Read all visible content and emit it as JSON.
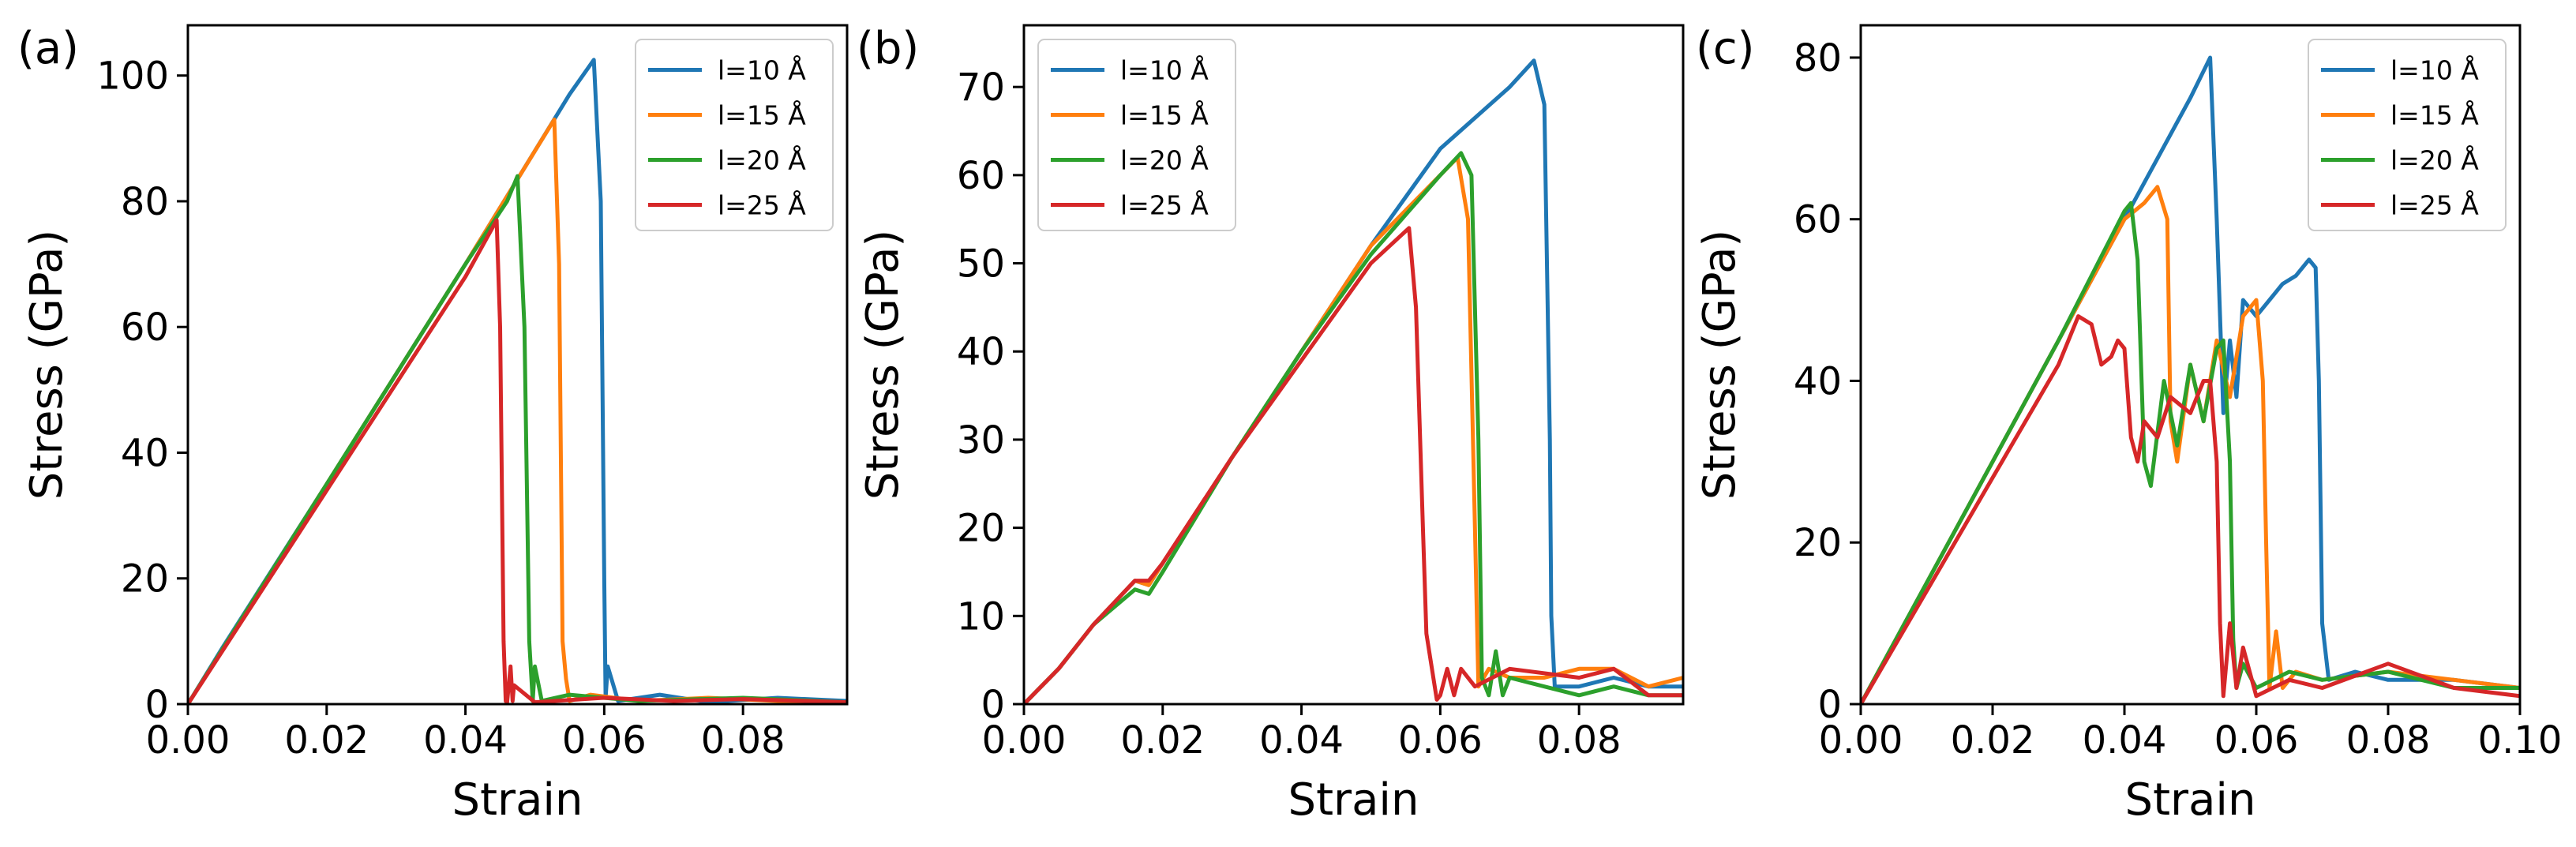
{
  "colors": {
    "s10": "#1f77b4",
    "s15": "#ff7f0e",
    "s20": "#2ca02c",
    "s25": "#d62728"
  },
  "chart_data": [
    {
      "type": "line",
      "panel_label": "(a)",
      "xlabel": "Strain",
      "ylabel": "Stress (GPa)",
      "xlim": [
        0,
        0.095
      ],
      "ylim": [
        0,
        108
      ],
      "xticks": [
        0,
        0.02,
        0.04,
        0.06,
        0.08
      ],
      "xtick_labels": [
        "0.00",
        "0.02",
        "0.04",
        "0.06",
        "0.08"
      ],
      "yticks": [
        0,
        20,
        40,
        60,
        80,
        100
      ],
      "ytick_labels": [
        "0",
        "20",
        "40",
        "60",
        "80",
        "100"
      ],
      "legend": "top-right",
      "series": [
        {
          "name": "l=10 Å",
          "color": "#1f77b4",
          "x": [
            0,
            0.005,
            0.02,
            0.04,
            0.055,
            0.0585,
            0.0595,
            0.06,
            0.0602,
            0.0605,
            0.062,
            0.068,
            0.075,
            0.085,
            0.095
          ],
          "y": [
            0,
            9,
            35,
            70,
            97,
            102.5,
            80,
            20,
            1,
            6,
            0.5,
            1.5,
            0.3,
            1,
            0.5
          ]
        },
        {
          "name": "l=15 Å",
          "color": "#ff7f0e",
          "x": [
            0,
            0.02,
            0.04,
            0.05,
            0.0528,
            0.0535,
            0.054,
            0.0545,
            0.055,
            0.058,
            0.065,
            0.075,
            0.085,
            0.095
          ],
          "y": [
            0,
            35,
            70,
            88,
            93,
            70,
            10,
            4,
            0.5,
            1.5,
            0.5,
            1,
            0.5,
            0.3
          ]
        },
        {
          "name": "l=20 Å",
          "color": "#2ca02c",
          "x": [
            0,
            0.02,
            0.04,
            0.046,
            0.0475,
            0.0485,
            0.0492,
            0.0497,
            0.05,
            0.051,
            0.055,
            0.065,
            0.08,
            0.095
          ],
          "y": [
            0,
            35,
            70,
            80,
            84,
            60,
            10,
            0.5,
            6,
            0.5,
            1.5,
            0.5,
            1,
            0.3
          ]
        },
        {
          "name": "l=25 Å",
          "color": "#d62728",
          "x": [
            0,
            0.02,
            0.04,
            0.0445,
            0.045,
            0.0455,
            0.0458,
            0.046,
            0.0465,
            0.0468,
            0.047,
            0.05,
            0.06,
            0.07,
            0.08,
            0.095
          ],
          "y": [
            0,
            34,
            68,
            77,
            60,
            10,
            0.5,
            0.2,
            6,
            0.5,
            3,
            0.3,
            1,
            0.5,
            0.8,
            0.3
          ]
        }
      ]
    },
    {
      "type": "line",
      "panel_label": "(b)",
      "xlabel": "Strain",
      "ylabel": "Stress (GPa)",
      "xlim": [
        0,
        0.095
      ],
      "ylim": [
        0,
        77
      ],
      "xticks": [
        0,
        0.02,
        0.04,
        0.06,
        0.08
      ],
      "xtick_labels": [
        "0.00",
        "0.02",
        "0.04",
        "0.06",
        "0.08"
      ],
      "yticks": [
        0,
        10,
        20,
        30,
        40,
        50,
        60,
        70
      ],
      "ytick_labels": [
        "0",
        "10",
        "20",
        "30",
        "40",
        "50",
        "60",
        "70"
      ],
      "legend": "top-left",
      "series": [
        {
          "name": "l=10 Å",
          "color": "#1f77b4",
          "x": [
            0,
            0.005,
            0.01,
            0.016,
            0.018,
            0.02,
            0.03,
            0.04,
            0.05,
            0.06,
            0.07,
            0.0735,
            0.075,
            0.0758,
            0.076,
            0.0765,
            0.08,
            0.085,
            0.09,
            0.095
          ],
          "y": [
            0,
            4,
            9,
            14,
            13.5,
            16,
            28,
            40,
            52,
            63,
            70,
            73,
            68,
            30,
            10,
            2,
            2,
            3,
            2,
            2
          ]
        },
        {
          "name": "l=15 Å",
          "color": "#ff7f0e",
          "x": [
            0,
            0.005,
            0.01,
            0.016,
            0.018,
            0.02,
            0.03,
            0.04,
            0.05,
            0.06,
            0.0625,
            0.064,
            0.065,
            0.0655,
            0.067,
            0.07,
            0.075,
            0.08,
            0.085,
            0.09,
            0.095
          ],
          "y": [
            0,
            4,
            9,
            14,
            13.5,
            16,
            28,
            40,
            52,
            60,
            62,
            55,
            20,
            2,
            4,
            3,
            3,
            4,
            4,
            2,
            3
          ]
        },
        {
          "name": "l=20 Å",
          "color": "#2ca02c",
          "x": [
            0,
            0.005,
            0.01,
            0.016,
            0.018,
            0.02,
            0.03,
            0.04,
            0.05,
            0.06,
            0.063,
            0.0645,
            0.0655,
            0.066,
            0.067,
            0.068,
            0.069,
            0.07,
            0.075,
            0.08,
            0.085,
            0.09,
            0.095
          ],
          "y": [
            0,
            4,
            9,
            13,
            12.5,
            15,
            28,
            40,
            51,
            60,
            62.5,
            60,
            30,
            3,
            1,
            6,
            1,
            3,
            2,
            1,
            2,
            1,
            1
          ]
        },
        {
          "name": "l=25 Å",
          "color": "#d62728",
          "x": [
            0,
            0.005,
            0.01,
            0.016,
            0.018,
            0.02,
            0.03,
            0.04,
            0.05,
            0.0555,
            0.0565,
            0.0575,
            0.058,
            0.0595,
            0.06,
            0.061,
            0.062,
            0.063,
            0.065,
            0.07,
            0.08,
            0.085,
            0.09,
            0.095
          ],
          "y": [
            0,
            4,
            9,
            14,
            14,
            16,
            28,
            39,
            50,
            54,
            45,
            20,
            8,
            0.5,
            1,
            4,
            1,
            4,
            2,
            4,
            3,
            4,
            1,
            1
          ]
        }
      ]
    },
    {
      "type": "line",
      "panel_label": "(c)",
      "xlabel": "Strain",
      "ylabel": "Stress (GPa)",
      "xlim": [
        0,
        0.1
      ],
      "ylim": [
        0,
        84
      ],
      "xticks": [
        0,
        0.02,
        0.04,
        0.06,
        0.08,
        0.1
      ],
      "xtick_labels": [
        "0.00",
        "0.02",
        "0.04",
        "0.06",
        "0.08",
        "0.10"
      ],
      "yticks": [
        0,
        20,
        40,
        60,
        80
      ],
      "ytick_labels": [
        "0",
        "20",
        "40",
        "60",
        "80"
      ],
      "legend": "top-right",
      "series": [
        {
          "name": "l=10 Å",
          "color": "#1f77b4",
          "x": [
            0,
            0.01,
            0.02,
            0.03,
            0.04,
            0.05,
            0.053,
            0.054,
            0.055,
            0.056,
            0.057,
            0.058,
            0.06,
            0.064,
            0.066,
            0.068,
            0.069,
            0.0695,
            0.07,
            0.071,
            0.075,
            0.08,
            0.09,
            0.1
          ],
          "y": [
            0,
            15,
            30,
            45,
            60,
            75,
            80,
            60,
            36,
            45,
            38,
            50,
            48,
            52,
            53,
            55,
            54,
            40,
            10,
            3,
            4,
            3,
            3,
            2
          ]
        },
        {
          "name": "l=15 Å",
          "color": "#ff7f0e",
          "x": [
            0,
            0.01,
            0.02,
            0.03,
            0.04,
            0.043,
            0.045,
            0.0465,
            0.047,
            0.048,
            0.05,
            0.052,
            0.054,
            0.056,
            0.058,
            0.06,
            0.061,
            0.0615,
            0.062,
            0.063,
            0.064,
            0.066,
            0.07,
            0.08,
            0.09,
            0.1
          ],
          "y": [
            0,
            15,
            30,
            45,
            60,
            62,
            64,
            60,
            35,
            30,
            42,
            35,
            45,
            38,
            48,
            50,
            40,
            20,
            2,
            9,
            2,
            4,
            3,
            4,
            3,
            2
          ]
        },
        {
          "name": "l=20 Å",
          "color": "#2ca02c",
          "x": [
            0,
            0.01,
            0.02,
            0.03,
            0.04,
            0.041,
            0.042,
            0.043,
            0.044,
            0.046,
            0.048,
            0.05,
            0.052,
            0.054,
            0.055,
            0.056,
            0.0565,
            0.057,
            0.058,
            0.06,
            0.065,
            0.07,
            0.08,
            0.09,
            0.1
          ],
          "y": [
            0,
            15,
            30,
            45,
            61,
            62,
            55,
            30,
            27,
            40,
            32,
            42,
            35,
            44,
            45,
            30,
            8,
            2,
            5,
            2,
            4,
            3,
            4,
            2,
            2
          ]
        },
        {
          "name": "l=25 Å",
          "color": "#d62728",
          "x": [
            0,
            0.01,
            0.02,
            0.03,
            0.033,
            0.035,
            0.0365,
            0.038,
            0.039,
            0.04,
            0.041,
            0.042,
            0.043,
            0.045,
            0.047,
            0.05,
            0.052,
            0.053,
            0.054,
            0.0545,
            0.055,
            0.056,
            0.057,
            0.058,
            0.06,
            0.065,
            0.07,
            0.08,
            0.09,
            0.1
          ],
          "y": [
            0,
            14,
            28,
            42,
            48,
            47,
            42,
            43,
            45,
            44,
            33,
            30,
            35,
            33,
            38,
            36,
            40,
            40,
            30,
            10,
            1,
            10,
            2,
            7,
            1,
            3,
            2,
            5,
            2,
            1
          ]
        }
      ]
    }
  ]
}
